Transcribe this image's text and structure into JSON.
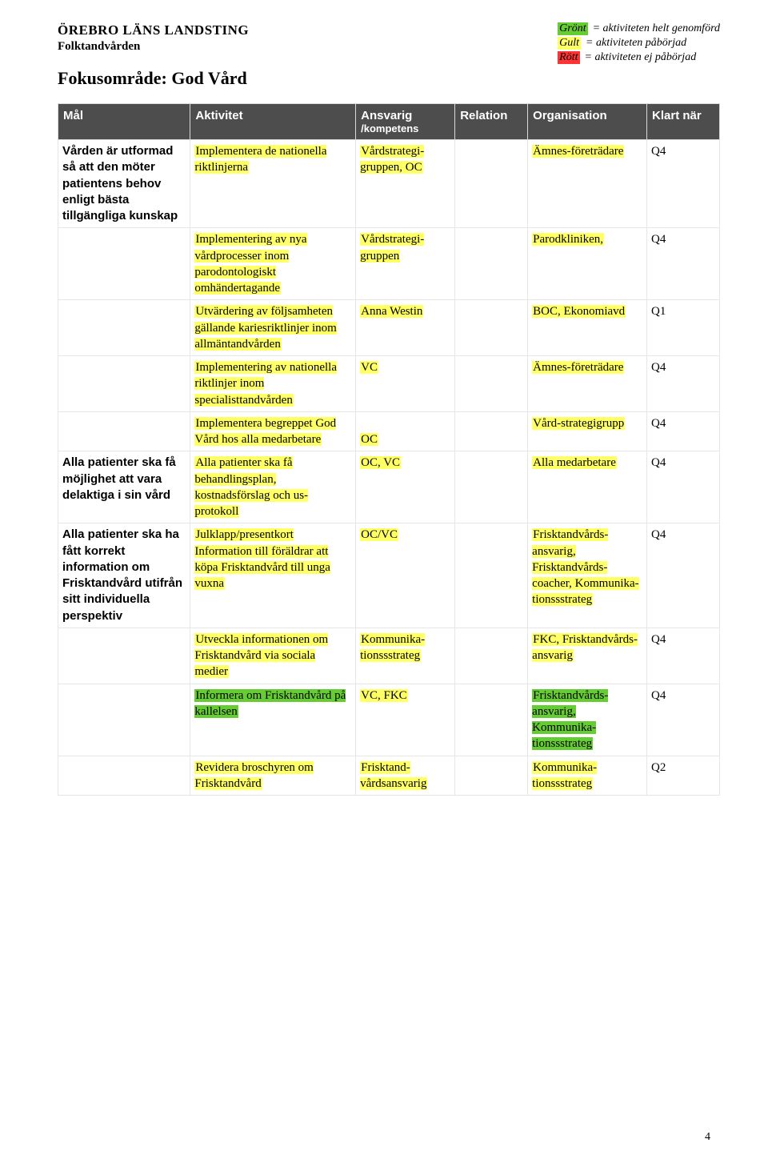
{
  "colors": {
    "green": "#66cc33",
    "yellow": "#ffff66",
    "red": "#ff3333",
    "header_bg": "#4d4d4d",
    "header_fg": "#ffffff",
    "border": "#e6e6e6"
  },
  "header": {
    "org": "ÖREBRO LÄNS LANDSTING",
    "sub": "Folktandvården",
    "title": "Fokusområde: God Vård"
  },
  "legend": {
    "items": [
      {
        "tag": "Grönt",
        "color": "green",
        "label": "= aktiviteten helt genomförd"
      },
      {
        "tag": "Gult",
        "color": "yellow",
        "label": "= aktiviteten påbörjad"
      },
      {
        "tag": "Rött",
        "color": "red",
        "label": "= aktiviteten ej påbörjad"
      }
    ]
  },
  "table": {
    "columns": [
      {
        "key": "mal",
        "label": "Mål"
      },
      {
        "key": "aktivitet",
        "label": "Aktivitet"
      },
      {
        "key": "ansvarig",
        "label": "Ansvarig",
        "sublabel": "/kompetens"
      },
      {
        "key": "relation",
        "label": "Relation"
      },
      {
        "key": "organisation",
        "label": "Organisation"
      },
      {
        "key": "klart",
        "label": "Klart när"
      }
    ],
    "rows": [
      {
        "mal": {
          "text": "Vården är utformad så att den möter patientens behov enligt bästa tillgängliga kunskap",
          "hl": null
        },
        "aktivitet": {
          "text": "Implementera de nationella riktlinjerna",
          "hl": "yellow"
        },
        "ansvarig": {
          "text": "Vårdstrategi-gruppen, OC",
          "hl": "yellow"
        },
        "relation": {
          "text": "",
          "hl": null
        },
        "organisation": {
          "text": "Ämnes-företrädare",
          "hl": "yellow"
        },
        "klart": {
          "text": "Q4",
          "hl": null
        }
      },
      {
        "mal": {
          "text": "",
          "hl": null
        },
        "aktivitet": {
          "text": "Implementering av nya vårdprocesser inom parodontologiskt omhändertagande",
          "hl": "yellow"
        },
        "ansvarig": {
          "text": "Vårdstrategi-gruppen",
          "hl": "yellow"
        },
        "relation": {
          "text": "",
          "hl": null
        },
        "organisation": {
          "text": "Parodkliniken,",
          "hl": "yellow"
        },
        "klart": {
          "text": "Q4",
          "hl": null
        }
      },
      {
        "mal": {
          "text": "",
          "hl": null
        },
        "aktivitet": {
          "text": "Utvärdering av följsamheten gällande kariesriktlinjer inom allmäntandvården",
          "hl": "yellow"
        },
        "ansvarig": {
          "text": "Anna Westin",
          "hl": "yellow"
        },
        "relation": {
          "text": "",
          "hl": null
        },
        "organisation": {
          "text": "BOC, Ekonomiavd",
          "hl": "yellow"
        },
        "klart": {
          "text": "Q1",
          "hl": null
        }
      },
      {
        "mal": {
          "text": "",
          "hl": null
        },
        "aktivitet": {
          "text": "Implementering av nationella riktlinjer inom specialisttandvården",
          "hl": "yellow"
        },
        "ansvarig": {
          "text": "VC",
          "hl": "yellow"
        },
        "relation": {
          "text": "",
          "hl": null
        },
        "organisation": {
          "text": "Ämnes-företrädare",
          "hl": "yellow"
        },
        "klart": {
          "text": "Q4",
          "hl": null
        }
      },
      {
        "mal": {
          "text": "",
          "hl": null
        },
        "aktivitet": {
          "text": "Implementera begreppet God Vård hos alla medarbetare",
          "hl": "yellow"
        },
        "ansvarig": {
          "text": "OC",
          "hl": "yellow",
          "prefix_blank": true
        },
        "relation": {
          "text": "",
          "hl": null
        },
        "organisation": {
          "text": "Vård-strategigrupp",
          "hl": "yellow"
        },
        "klart": {
          "text": "Q4",
          "hl": null
        }
      },
      {
        "mal": {
          "text": "Alla patienter ska få möjlighet att vara delaktiga i sin vård",
          "hl": null
        },
        "aktivitet": {
          "text": "Alla patienter ska få behandlingsplan, kostnadsförslag och us-protokoll",
          "hl": "yellow"
        },
        "ansvarig": {
          "text": "OC, VC",
          "hl": "yellow"
        },
        "relation": {
          "text": "",
          "hl": null
        },
        "organisation": {
          "text": "Alla medarbetare",
          "hl": "yellow"
        },
        "klart": {
          "text": "Q4",
          "hl": null
        }
      },
      {
        "mal": {
          "text": "Alla patienter ska ha fått korrekt information om Frisktandvård utifrån sitt individuella perspektiv",
          "hl": null
        },
        "aktivitet": {
          "text": "Julklapp/presentkort Information till föräldrar att köpa Frisktandvård till unga vuxna",
          "hl": "yellow"
        },
        "ansvarig": {
          "text": "OC/VC",
          "hl": "yellow"
        },
        "relation": {
          "text": "",
          "hl": null
        },
        "organisation": {
          "text": "Frisktandvårds-ansvarig, Frisktandvårds-coacher, Kommunika-tionssstrateg",
          "hl": "yellow"
        },
        "klart": {
          "text": "Q4",
          "hl": null
        }
      },
      {
        "mal": {
          "text": "",
          "hl": null
        },
        "aktivitet": {
          "text": "Utveckla informationen om Frisktandvård via sociala medier",
          "hl": "yellow"
        },
        "ansvarig": {
          "text": "Kommunika-tionssstrateg",
          "hl": "yellow"
        },
        "relation": {
          "text": "",
          "hl": null
        },
        "organisation": {
          "text": "FKC, Frisktandvårds-ansvarig",
          "hl": "yellow"
        },
        "klart": {
          "text": "Q4",
          "hl": null
        }
      },
      {
        "mal": {
          "text": "",
          "hl": null
        },
        "aktivitet": {
          "text": "Informera om Frisktandvård på kallelsen",
          "hl": "green"
        },
        "ansvarig": {
          "text": "VC, FKC",
          "hl": "yellow"
        },
        "relation": {
          "text": "",
          "hl": null
        },
        "organisation": {
          "text": "Frisktandvårds-ansvarig, Kommunika-tionssstrateg",
          "hl": "green"
        },
        "klart": {
          "text": "Q4",
          "hl": null
        }
      },
      {
        "mal": {
          "text": "",
          "hl": null
        },
        "aktivitet": {
          "text": "Revidera broschyren om Frisktandvård",
          "hl": "yellow"
        },
        "ansvarig": {
          "text": "Frisktand-vårdsansvarig",
          "hl": "yellow"
        },
        "relation": {
          "text": "",
          "hl": null
        },
        "organisation": {
          "text": "Kommunika-tionssstrateg",
          "hl": "yellow"
        },
        "klart": {
          "text": "Q2",
          "hl": null
        }
      }
    ]
  },
  "page_number": "4"
}
